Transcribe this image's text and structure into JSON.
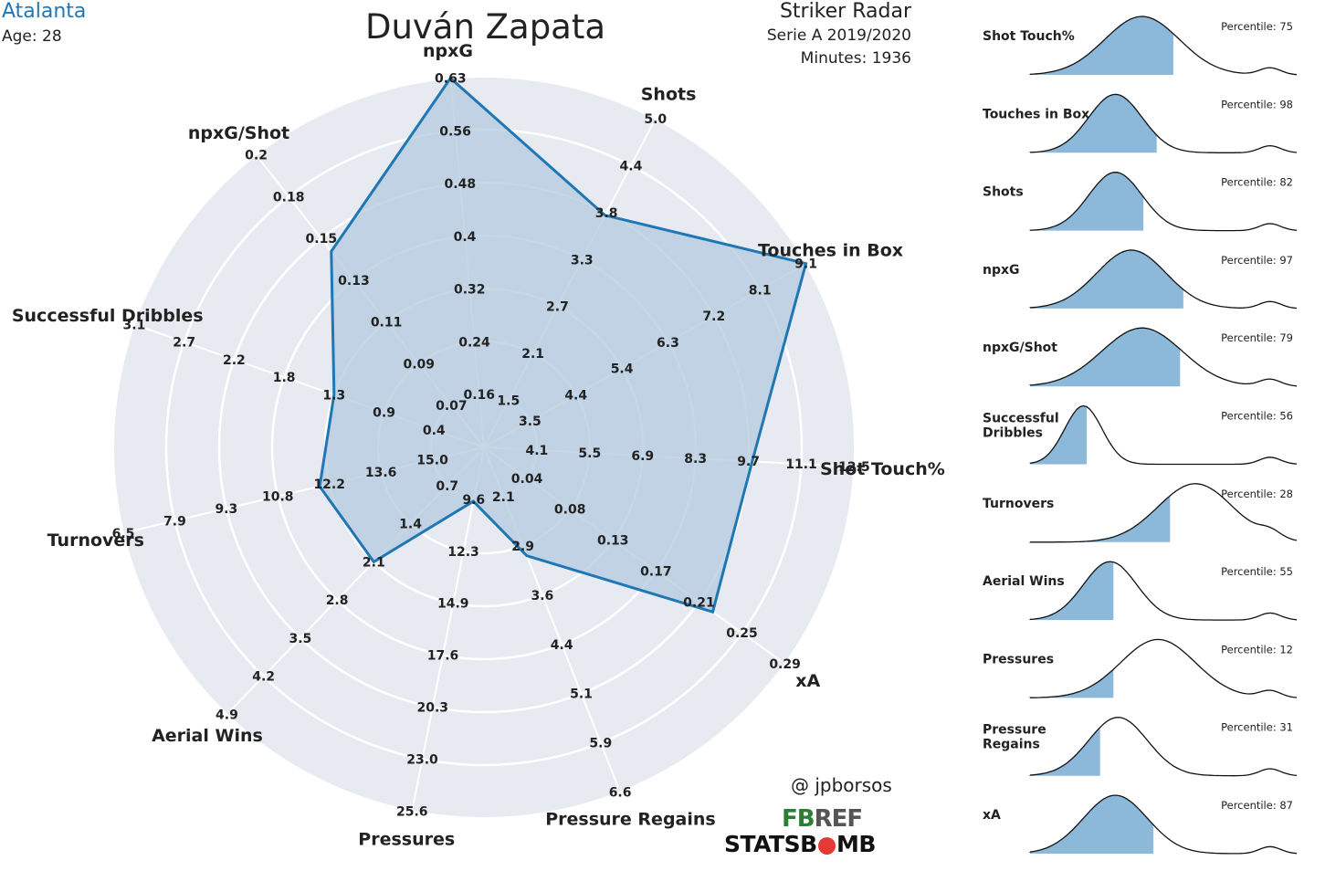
{
  "header": {
    "team": "Atalanta",
    "age": "Age: 28",
    "player": "Duván Zapata",
    "radar_title": "Striker Radar",
    "league": "Serie A 2019/2020",
    "minutes": "Minutes: 1936"
  },
  "credits": {
    "handle": "@ jpborsos",
    "fbref_a": "FB",
    "fbref_b": "REF",
    "statsbomb_a": "STATS",
    "statsbomb_b": "B",
    "statsbomb_c": "MB"
  },
  "colors": {
    "accent": "#1f77b4",
    "fill": "#b3c9df",
    "radar_bg": "#e8eaf1",
    "dist_fill": "#8cb8d9"
  },
  "chart_data": [
    {
      "type": "radar",
      "axes": [
        {
          "name": "Shot Touch%",
          "ticks": [
            "4.1",
            "5.5",
            "6.9",
            "8.3",
            "9.7",
            "11.1",
            "12.5"
          ],
          "value": 9.8
        },
        {
          "name": "Touches in Box",
          "ticks": [
            "3.5",
            "4.4",
            "5.4",
            "6.3",
            "7.2",
            "8.1",
            "9.1"
          ],
          "value": 9.1
        },
        {
          "name": "Shots",
          "ticks": [
            "1.5",
            "2.1",
            "2.7",
            "3.3",
            "3.8",
            "4.4",
            "5.0"
          ],
          "value": 3.8
        },
        {
          "name": "npxG",
          "ticks": [
            "0.16",
            "0.24",
            "0.32",
            "0.4",
            "0.48",
            "0.56",
            "0.63"
          ],
          "value": 0.63
        },
        {
          "name": "npxG/Shot",
          "ticks": [
            "0.07",
            "0.09",
            "0.11",
            "0.13",
            "0.15",
            "0.18",
            "0.2"
          ],
          "value": 0.15
        },
        {
          "name": "Successful Dribbles",
          "ticks": [
            "0.4",
            "0.9",
            "1.3",
            "1.8",
            "2.2",
            "2.7",
            "3.1"
          ],
          "value": 1.3
        },
        {
          "name": "Turnovers",
          "ticks": [
            "15.0",
            "13.6",
            "12.2",
            "10.8",
            "9.3",
            "7.9",
            "6.5"
          ],
          "value": 11.9
        },
        {
          "name": "Aerial Wins",
          "ticks": [
            "0.7",
            "1.4",
            "2.1",
            "2.8",
            "3.5",
            "4.2",
            "4.9"
          ],
          "value": 2.1
        },
        {
          "name": "Pressures",
          "ticks": [
            "9.6",
            "12.3",
            "14.9",
            "17.6",
            "20.3",
            "23.0",
            "25.6"
          ],
          "value": 9.7
        },
        {
          "name": "Pressure Regains",
          "ticks": [
            "2.1",
            "2.9",
            "3.6",
            "4.4",
            "5.1",
            "5.9",
            "6.6"
          ],
          "value": 3.0
        },
        {
          "name": "xA",
          "ticks": [
            "0.04",
            "0.08",
            "0.13",
            "0.17",
            "0.21",
            "0.25",
            "0.29"
          ],
          "value": 0.22
        }
      ]
    },
    {
      "type": "area",
      "distributions": [
        {
          "name": "Shot Touch%",
          "percentile": "Percentile: 75",
          "value": 75,
          "peak": 0.42,
          "width": 0.14
        },
        {
          "name": "Touches in Box",
          "percentile": "Percentile: 98",
          "value": 98,
          "peak": 0.32,
          "width": 0.1
        },
        {
          "name": "Shots",
          "percentile": "Percentile: 82",
          "value": 82,
          "peak": 0.32,
          "width": 0.1
        },
        {
          "name": "npxG",
          "percentile": "Percentile: 97",
          "value": 97,
          "peak": 0.38,
          "width": 0.13
        },
        {
          "name": "npxG/Shot",
          "percentile": "Percentile: 79",
          "value": 79,
          "peak": 0.42,
          "width": 0.15
        },
        {
          "name": "Successful Dribbles",
          "percentile": "Percentile: 56",
          "value": 56,
          "peak": 0.2,
          "width": 0.07
        },
        {
          "name": "Turnovers",
          "percentile": "Percentile: 28",
          "value": 28,
          "peak": 0.62,
          "width": 0.14
        },
        {
          "name": "Aerial Wins",
          "percentile": "Percentile: 55",
          "value": 55,
          "peak": 0.3,
          "width": 0.1
        },
        {
          "name": "Pressures",
          "percentile": "Percentile: 12",
          "value": 12,
          "peak": 0.48,
          "width": 0.14
        },
        {
          "name": "Pressure Regains",
          "percentile": "Percentile: 31",
          "value": 31,
          "peak": 0.33,
          "width": 0.11
        },
        {
          "name": "xA",
          "percentile": "Percentile: 87",
          "value": 87,
          "peak": 0.32,
          "width": 0.12
        }
      ]
    }
  ]
}
